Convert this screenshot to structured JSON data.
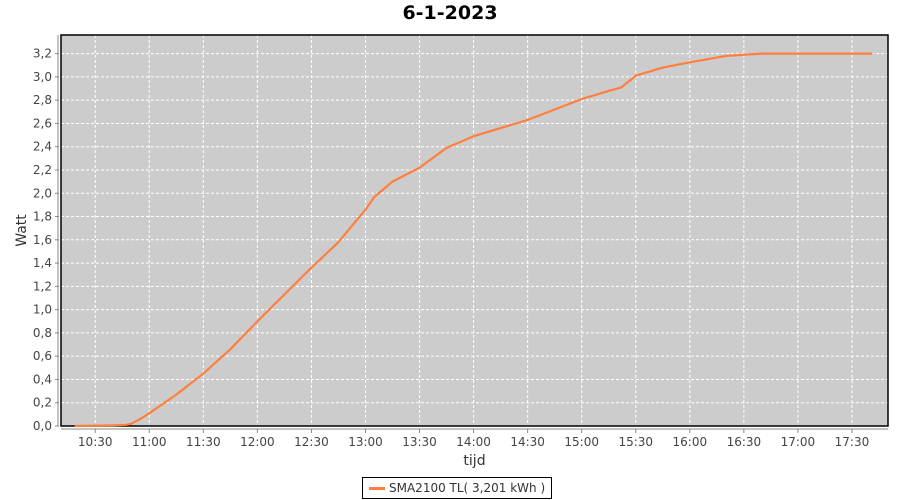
{
  "chart_data": {
    "type": "line",
    "title": "6-1-2023",
    "xlabel": "tijd",
    "ylabel": "Watt",
    "xlim": [
      "10:11",
      "17:50"
    ],
    "ylim": [
      0,
      3.36
    ],
    "x_ticks": [
      "10:30",
      "11:00",
      "11:30",
      "12:00",
      "12:30",
      "13:00",
      "13:30",
      "14:00",
      "14:30",
      "15:00",
      "15:30",
      "16:00",
      "16:30",
      "17:00",
      "17:30"
    ],
    "y_ticks": [
      "0,0",
      "0,2",
      "0,4",
      "0,6",
      "0,8",
      "1,0",
      "1,2",
      "1,4",
      "1,6",
      "1,8",
      "2,0",
      "2,2",
      "2,4",
      "2,6",
      "2,8",
      "3,0",
      "3,2"
    ],
    "grid": true,
    "legend_position": "bottom",
    "series": [
      {
        "name": "SMA2100 TL( 3,201 kWh )",
        "color": "#ff7f3f",
        "x": [
          "10:19",
          "10:40",
          "10:47",
          "10:50",
          "10:55",
          "11:00",
          "11:15",
          "11:30",
          "11:45",
          "12:00",
          "12:15",
          "12:30",
          "12:45",
          "13:00",
          "13:05",
          "13:15",
          "13:30",
          "13:45",
          "14:00",
          "14:15",
          "14:30",
          "14:45",
          "15:00",
          "15:15",
          "15:22",
          "15:30",
          "15:45",
          "16:00",
          "16:20",
          "16:40",
          "17:00",
          "17:20",
          "17:41"
        ],
        "y": [
          0,
          0.005,
          0.01,
          0.02,
          0.06,
          0.11,
          0.27,
          0.45,
          0.66,
          0.9,
          1.13,
          1.36,
          1.58,
          1.86,
          1.97,
          2.1,
          2.22,
          2.39,
          2.49,
          2.56,
          2.63,
          2.72,
          2.81,
          2.88,
          2.91,
          3.01,
          3.08,
          3.125,
          3.18,
          3.2,
          3.2,
          3.2,
          3.2
        ]
      }
    ]
  },
  "background_color": "#cccccc",
  "grid_color": "#ffffff"
}
